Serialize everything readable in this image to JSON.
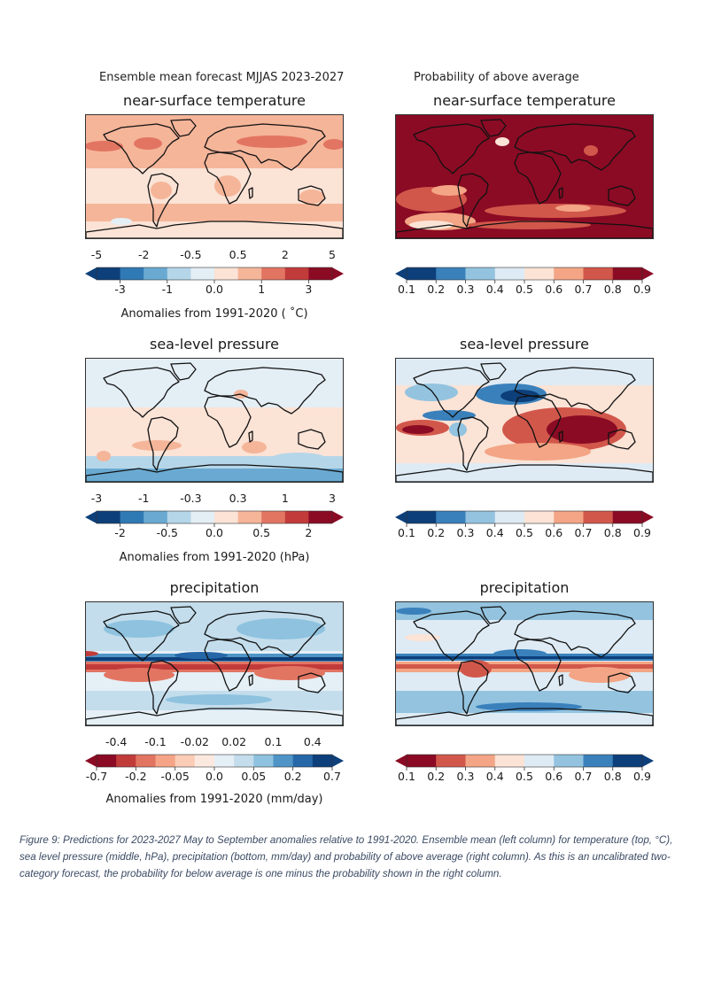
{
  "header": {
    "left": "Ensemble mean forecast MJJAS 2023-2027",
    "right": "Probability of above average"
  },
  "colors": {
    "rdbu": [
      "#0d3f7a",
      "#2f79b5",
      "#6aaad2",
      "#b5d6e9",
      "#e4eef5",
      "#fbe3d6",
      "#f5b599",
      "#e27562",
      "#c23b3b",
      "#8b0b24"
    ],
    "rdbu12": [
      "#8b0b24",
      "#c23b3b",
      "#e27562",
      "#f5a487",
      "#fbcdb6",
      "#fbe9e0",
      "#e5eff6",
      "#c3ddec",
      "#8ec2df",
      "#4e94c6",
      "#2667a8",
      "#0d3f7a"
    ],
    "prob_warm": [
      "#0d3f7a",
      "#3a81bc",
      "#93c3df",
      "#deebf4",
      "#fbe3d6",
      "#f3a585",
      "#d2574b",
      "#8b0b24"
    ],
    "prob_wet": [
      "#8b0b24",
      "#d2574b",
      "#f3a585",
      "#fbe3d6",
      "#deebf4",
      "#93c3df",
      "#3a81bc",
      "#0d3f7a"
    ],
    "coast": "#111111"
  },
  "chart_data": [
    {
      "type": "heatmap",
      "panel": "ensemble-mean-temperature",
      "title": "near-surface temperature",
      "colorbar": {
        "top_ticks": [
          "-5",
          "-2",
          "-0.5",
          "0.5",
          "2",
          "5"
        ],
        "bottom_ticks": [
          "-3",
          "-1",
          "0.0",
          "1",
          "3"
        ],
        "levels": [
          -5,
          -3,
          -2,
          -1,
          -0.5,
          0,
          0.5,
          1,
          2,
          3,
          5
        ],
        "label": "Anomalies from 1991-2020 ( ˚C)",
        "extend": "both"
      },
      "field_summary": "mostly positive anomalies (0 to 2 °C), strongest over northern continents"
    },
    {
      "type": "heatmap",
      "panel": "probability-temperature",
      "title": "near-surface temperature",
      "colorbar": {
        "ticks": [
          "0.1",
          "0.2",
          "0.3",
          "0.4",
          "0.5",
          "0.6",
          "0.7",
          "0.8",
          "0.9"
        ],
        "levels": [
          0.1,
          0.2,
          0.3,
          0.4,
          0.5,
          0.6,
          0.7,
          0.8,
          0.9
        ],
        "extend": "both"
      },
      "field_summary": "probability above 0.8 almost everywhere; lower over Southern Ocean"
    },
    {
      "type": "heatmap",
      "panel": "ensemble-mean-slp",
      "title": "sea-level pressure",
      "colorbar": {
        "top_ticks": [
          "-3",
          "-1",
          "-0.3",
          "0.3",
          "1",
          "3"
        ],
        "bottom_ticks": [
          "-2",
          "-0.5",
          "0.0",
          "0.5",
          "2"
        ],
        "levels": [
          -3,
          -2,
          -1,
          -0.5,
          -0.3,
          0,
          0.3,
          0.5,
          1,
          2,
          3
        ],
        "label": "Anomalies from 1991-2020 (hPa)",
        "extend": "both"
      },
      "field_summary": "weak anomalies; negative around Antarctica, small positive in southern mid-latitudes"
    },
    {
      "type": "heatmap",
      "panel": "probability-slp",
      "title": "sea-level pressure",
      "colorbar": {
        "ticks": [
          "0.1",
          "0.2",
          "0.3",
          "0.4",
          "0.5",
          "0.6",
          "0.7",
          "0.8",
          "0.9"
        ],
        "levels": [
          0.1,
          0.2,
          0.3,
          0.4,
          0.5,
          0.6,
          0.7,
          0.8,
          0.9
        ],
        "extend": "both"
      },
      "field_summary": "high probability over tropical Indian Ocean/Maritime continent; low over North Atlantic/Mediterranean"
    },
    {
      "type": "heatmap",
      "panel": "ensemble-mean-precip",
      "title": "precipitation",
      "colorbar": {
        "top_ticks": [
          "-0.4",
          "-0.1",
          "-0.02",
          "0.02",
          "0.1",
          "0.4"
        ],
        "bottom_ticks": [
          "-0.7",
          "-0.2",
          "-0.05",
          "0.0",
          "0.05",
          "0.2",
          "0.7"
        ],
        "levels": [
          -0.7,
          -0.4,
          -0.2,
          -0.1,
          -0.05,
          -0.02,
          0,
          0.02,
          0.05,
          0.1,
          0.2,
          0.4,
          0.7
        ],
        "label": "Anomalies from 1991-2020 (mm/day)",
        "extend": "both"
      },
      "field_summary": "wet band along equatorial Pacific ITCZ, dry band just south across tropics"
    },
    {
      "type": "heatmap",
      "panel": "probability-precip",
      "title": "precipitation",
      "colorbar": {
        "ticks": [
          "0.1",
          "0.2",
          "0.3",
          "0.4",
          "0.5",
          "0.6",
          "0.7",
          "0.8",
          "0.9"
        ],
        "levels": [
          0.1,
          0.2,
          0.3,
          0.4,
          0.5,
          0.6,
          0.7,
          0.8,
          0.9
        ],
        "extend": "both"
      },
      "field_summary": "high probability of wetter equatorial Pacific; low probability in southern tropics"
    }
  ],
  "caption": "Figure 9: Predictions for 2023-2027 May to September anomalies relative to 1991-2020. Ensemble mean (left column) for temperature (top, °C), sea level pressure (middle, hPa), precipitation (bottom, mm/day) and probability of above average (right column). As this is an uncalibrated two-category forecast, the probability for below average is one minus the probability shown in the right column."
}
